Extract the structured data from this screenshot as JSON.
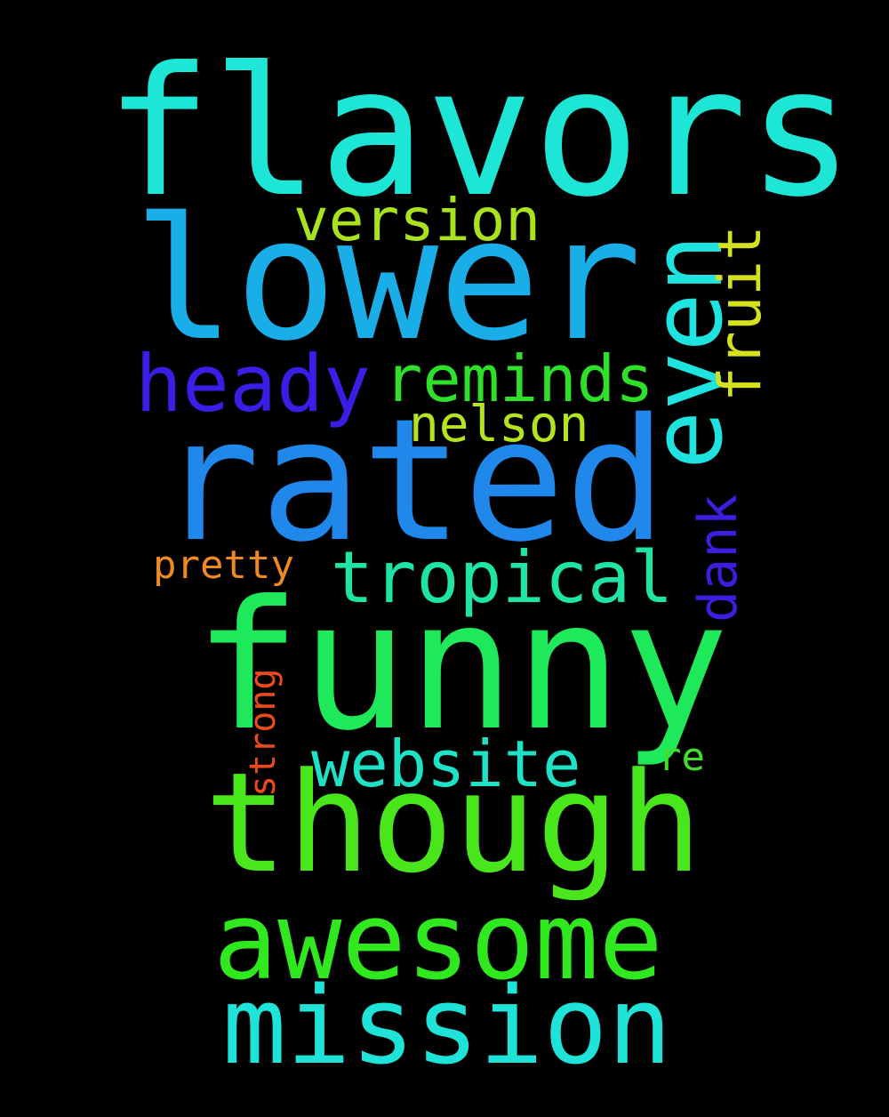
{
  "words": [
    {
      "id": "flavors",
      "text": "flavors",
      "color": "#1ee6d6",
      "orientation": "horizontal"
    },
    {
      "id": "lower",
      "text": "lower",
      "color": "#1aaee8",
      "orientation": "horizontal"
    },
    {
      "id": "rated",
      "text": "rated",
      "color": "#1f88ea",
      "orientation": "horizontal"
    },
    {
      "id": "funny",
      "text": "funny",
      "color": "#1ee95a",
      "orientation": "horizontal"
    },
    {
      "id": "though",
      "text": "though",
      "color": "#4ae61c",
      "orientation": "horizontal"
    },
    {
      "id": "awesome",
      "text": "awesome",
      "color": "#30e81e",
      "orientation": "horizontal"
    },
    {
      "id": "mission",
      "text": "mission",
      "color": "#1fe3d8",
      "orientation": "horizontal"
    },
    {
      "id": "even",
      "text": "even",
      "color": "#1fe3de",
      "orientation": "vertical"
    },
    {
      "id": "version",
      "text": "version",
      "color": "#a8e31e",
      "orientation": "horizontal"
    },
    {
      "id": "fruit",
      "text": "fruit",
      "color": "#d6e11e",
      "orientation": "vertical"
    },
    {
      "id": "heady",
      "text": "heady",
      "color": "#3a1ee6",
      "orientation": "horizontal"
    },
    {
      "id": "reminds",
      "text": "reminds",
      "color": "#2fe02a",
      "orientation": "horizontal"
    },
    {
      "id": "nelson",
      "text": "nelson",
      "color": "#b4e41c",
      "orientation": "horizontal"
    },
    {
      "id": "pretty",
      "text": "pretty",
      "color": "#ee8a20",
      "orientation": "horizontal"
    },
    {
      "id": "tropical",
      "text": "tropical",
      "color": "#1ee5a6",
      "orientation": "horizontal"
    },
    {
      "id": "dank",
      "text": "dank",
      "color": "#3c1ee0",
      "orientation": "vertical"
    },
    {
      "id": "strong",
      "text": "strong",
      "color": "#ec4a1c",
      "orientation": "vertical"
    },
    {
      "id": "website",
      "text": "website",
      "color": "#1ee2c6",
      "orientation": "horizontal"
    },
    {
      "id": "re",
      "text": "re",
      "color": "#40e02a",
      "orientation": "horizontal"
    }
  ]
}
